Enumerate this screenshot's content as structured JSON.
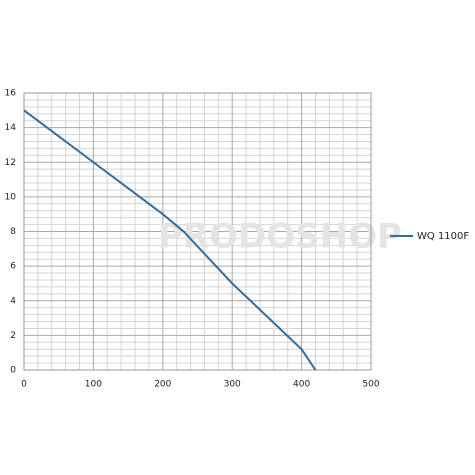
{
  "chart_data": {
    "type": "line",
    "x": [
      0,
      100,
      200,
      230,
      300,
      400,
      420
    ],
    "series": [
      {
        "name": "WQ 1100F",
        "color": "#2f6ea5",
        "values": [
          15,
          12,
          9,
          8,
          5,
          1.2,
          0
        ]
      }
    ],
    "xlim": [
      0,
      500
    ],
    "xticks": [
      0,
      100,
      200,
      300,
      400,
      500
    ],
    "ylim": [
      0,
      16
    ],
    "yticks": [
      0,
      2,
      4,
      6,
      8,
      10,
      12,
      14,
      16
    ],
    "grid": true,
    "legend": "right",
    "watermark": "PRODOSHOP"
  }
}
